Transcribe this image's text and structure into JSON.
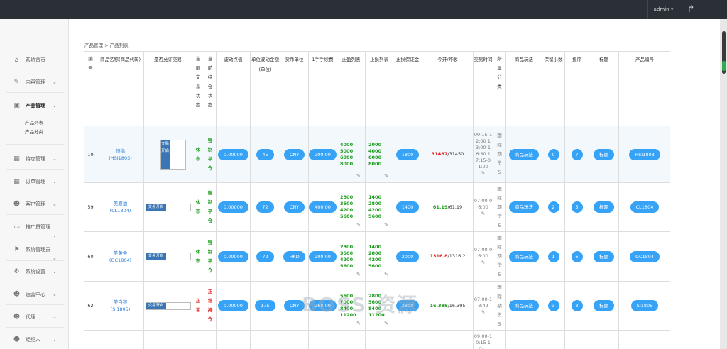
{
  "header": {
    "user": "admin ▾",
    "logout_icon": "share-icon"
  },
  "sidebar": {
    "items": [
      {
        "label": "系统首页",
        "icon": "home-icon"
      },
      {
        "label": "内容管理",
        "icon": "edit-icon"
      },
      {
        "label": "产品管理",
        "icon": "calendar-icon"
      },
      {
        "label": "持仓管理",
        "icon": "grid-icon"
      },
      {
        "label": "订单管理",
        "icon": "grid-icon"
      },
      {
        "label": "客户管理",
        "icon": "users-icon"
      },
      {
        "label": "推广员管理",
        "icon": "image-icon"
      },
      {
        "label": "系统管理员",
        "icon": "flag-icon"
      },
      {
        "label": "系统设置",
        "icon": "gear-icon"
      },
      {
        "label": "运营中心",
        "icon": "users-icon"
      },
      {
        "label": "代理",
        "icon": "users-icon"
      },
      {
        "label": "经纪人",
        "icon": "users-icon"
      }
    ],
    "sub_items": [
      "产品列表",
      "产品分类"
    ]
  },
  "breadcrumb": "产品管理 > 产品列表",
  "table": {
    "headers": [
      "编号",
      "商品名称(商品代码)",
      "是否允许交易",
      "当前交易状态",
      "当前持仓状态",
      "波动点值",
      "单位波动金额(单位)",
      "货币单位",
      "1手手续费",
      "止盈列表",
      "止损列表",
      "止损保证金",
      "今开/昨收",
      "交易时间",
      "所属分类",
      "商品玩法",
      "保留小数",
      "排序",
      "标题",
      "产品编号"
    ],
    "rows": [
      {
        "id": "10",
        "name": "恒指",
        "code": "(HSI1803)",
        "toggle": "交易开启",
        "trade_status": "休市",
        "hold_status": "强制平仓",
        "point": "0.00000",
        "unit": "45",
        "currency": "CNY",
        "fee": "200.00",
        "tp": [
          "4000",
          "5000",
          "6000",
          "8000"
        ],
        "sl": [
          "2000",
          "4000",
          "6000",
          "8000"
        ],
        "margin": "1800",
        "open": "31467",
        "close": "/31450",
        "time": "09:15-12:00 13:00-16:30 17:15-01:00",
        "category": "国际期货5",
        "play": "商品玩法",
        "decimals": "0",
        "sort": "7",
        "title": "标题",
        "pid": "HSI1803"
      },
      {
        "id": "59",
        "name": "美原油",
        "code": "(CL1804)",
        "toggle": "交易开启",
        "trade_status": "休市",
        "hold_status": "强制平仓",
        "point": "0.00000",
        "unit": "72",
        "currency": "CNY",
        "fee": "400.00",
        "tp": [
          "2800",
          "3500",
          "4200",
          "5600"
        ],
        "sl": [
          "1400",
          "2800",
          "4200",
          "5600"
        ],
        "margin": "1400",
        "open": "61.19",
        "close": "/61.19",
        "time": "07:00-06:00",
        "category": "国际期货5",
        "play": "商品玩法",
        "decimals": "2",
        "sort": "5",
        "title": "标题",
        "pid": "CL1804"
      },
      {
        "id": "60",
        "name": "美黄金",
        "code": "(GC1804)",
        "toggle": "交易开启",
        "trade_status": "休市",
        "hold_status": "强制平仓",
        "point": "0.00000",
        "unit": "72",
        "currency": "HKD",
        "fee": "200.00",
        "tp": [
          "2800",
          "3500",
          "4200",
          "5600"
        ],
        "sl": [
          "1400",
          "2800",
          "4200",
          "5600"
        ],
        "margin": "2000",
        "open": "1316.8",
        "close": "/1316.2",
        "time": "07:00-06:00",
        "category": "国际期货5",
        "play": "商品玩法",
        "decimals": "1",
        "sort": "6",
        "title": "标题",
        "pid": "GC1804"
      },
      {
        "id": "62",
        "name": "美白银",
        "code": "(SI1805)",
        "toggle": "交易开启",
        "trade_status": "正常",
        "hold_status": "正常持仓",
        "point": "0.00000",
        "unit": "175",
        "currency": "CNY",
        "fee": "268.00",
        "tp": [
          "5600",
          "7000",
          "8400",
          "11200"
        ],
        "sl": [
          "2800",
          "5600",
          "8400",
          "11200"
        ],
        "margin": "2800",
        "open": "16.385",
        "close": "/16.395",
        "time": "07:00-13:42",
        "category": "国际期货5",
        "play": "商品玩法",
        "decimals": "3",
        "sort": "8",
        "title": "标题",
        "pid": "SI1805"
      }
    ],
    "partial_row": {
      "tp": "600",
      "sl": "300",
      "time": "09:00-10:15 10:..."
    }
  },
  "watermark": "BOSS 资源"
}
